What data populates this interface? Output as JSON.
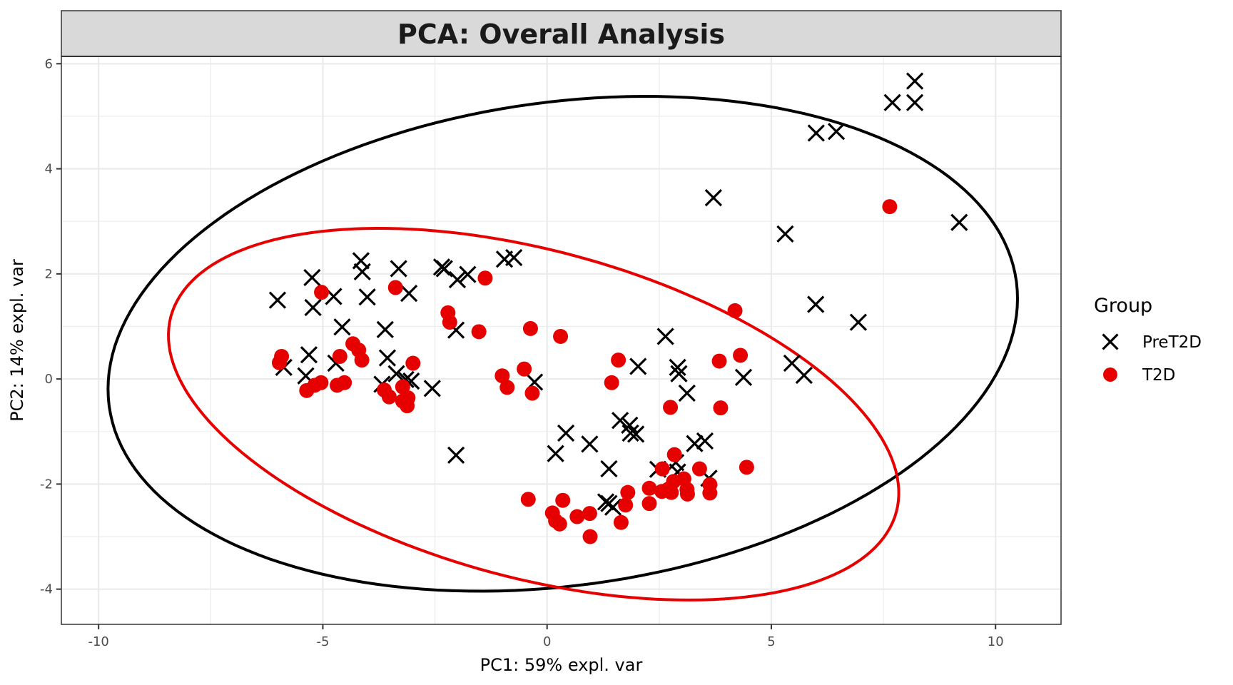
{
  "chart_data": {
    "type": "scatter",
    "title": "PCA: Overall Analysis",
    "xlabel": "PC1: 59% expl. var",
    "ylabel": "PC2: 14% expl. var",
    "xlim": [
      -10.83,
      11.46
    ],
    "ylim": [
      -4.67,
      6.14
    ],
    "xticks": [
      -10,
      -5,
      0,
      5,
      10
    ],
    "xtick_labels": [
      "-10",
      "-5",
      "0",
      "5",
      "10"
    ],
    "yticks": [
      -4,
      -2,
      0,
      2,
      4,
      6
    ],
    "ytick_labels": [
      "-4",
      "-2",
      "0",
      "2",
      "4",
      "6"
    ],
    "grid": true,
    "legend": {
      "title": "Group",
      "position": "right"
    },
    "colors": {
      "PreT2D": "#000000",
      "T2D": "#e60000",
      "strip": "#d9d9d9",
      "grid": "#ebebeb",
      "panel_border": "#333333"
    },
    "series": [
      {
        "name": "PreT2D",
        "marker": "cross",
        "color": "#000000",
        "points": [
          [
            8.2,
            5.67
          ],
          [
            7.7,
            5.26
          ],
          [
            8.2,
            5.26
          ],
          [
            6.0,
            4.68
          ],
          [
            6.45,
            4.71
          ],
          [
            3.71,
            3.45
          ],
          [
            5.31,
            2.76
          ],
          [
            9.19,
            2.98
          ],
          [
            5.99,
            1.42
          ],
          [
            6.94,
            1.08
          ],
          [
            5.46,
            0.3
          ],
          [
            5.73,
            0.07
          ],
          [
            4.38,
            0.03
          ],
          [
            2.64,
            0.81
          ],
          [
            2.03,
            0.24
          ],
          [
            2.91,
            0.22
          ],
          [
            2.94,
            0.1
          ],
          [
            3.12,
            -0.27
          ],
          [
            -0.28,
            -0.06
          ],
          [
            -0.95,
            2.28
          ],
          [
            -0.74,
            2.31
          ],
          [
            -2.35,
            2.13
          ],
          [
            -2.29,
            2.1
          ],
          [
            -2.0,
            1.89
          ],
          [
            -1.77,
            1.99
          ],
          [
            -2.03,
            0.93
          ],
          [
            -2.56,
            -0.18
          ],
          [
            -2.03,
            -1.45
          ],
          [
            -3.31,
            2.1
          ],
          [
            -3.08,
            1.63
          ],
          [
            -4.15,
            2.25
          ],
          [
            -4.12,
            2.04
          ],
          [
            -4.01,
            1.56
          ],
          [
            -5.24,
            1.93
          ],
          [
            -5.22,
            1.36
          ],
          [
            -4.76,
            1.57
          ],
          [
            -6.01,
            1.5
          ],
          [
            -4.57,
            0.99
          ],
          [
            -3.61,
            0.94
          ],
          [
            -5.31,
            0.46
          ],
          [
            -4.71,
            0.3
          ],
          [
            -5.87,
            0.22
          ],
          [
            -5.38,
            0.06
          ],
          [
            -3.56,
            0.4
          ],
          [
            -3.36,
            0.1
          ],
          [
            -3.15,
            -0.01
          ],
          [
            -3.03,
            -0.04
          ],
          [
            -3.68,
            -0.1
          ],
          [
            0.42,
            -1.03
          ],
          [
            0.19,
            -1.42
          ],
          [
            0.95,
            -1.24
          ],
          [
            1.38,
            -1.71
          ],
          [
            1.63,
            -0.79
          ],
          [
            1.84,
            -0.88
          ],
          [
            1.86,
            -1.03
          ],
          [
            1.98,
            -1.05
          ],
          [
            3.29,
            -1.23
          ],
          [
            3.52,
            -1.18
          ],
          [
            2.47,
            -1.72
          ],
          [
            2.87,
            -1.59
          ],
          [
            2.91,
            -1.77
          ],
          [
            3.61,
            -1.89
          ],
          [
            1.31,
            -2.34
          ],
          [
            1.38,
            -2.37
          ],
          [
            1.47,
            -2.44
          ]
        ],
        "ellipse": {
          "center": [
            0.35,
            0.67
          ],
          "u": [
            10.14,
            0.86
          ],
          "v": [
            0.0,
            4.63
          ]
        }
      },
      {
        "name": "T2D",
        "marker": "circle",
        "color": "#e60000",
        "points": [
          [
            7.64,
            3.28
          ],
          [
            4.19,
            1.3
          ],
          [
            -1.38,
            1.92
          ],
          [
            -5.03,
            1.65
          ],
          [
            -3.38,
            1.74
          ],
          [
            -2.21,
            1.26
          ],
          [
            -2.17,
            1.08
          ],
          [
            -1.52,
            0.9
          ],
          [
            -0.37,
            0.96
          ],
          [
            0.3,
            0.81
          ],
          [
            1.59,
            0.36
          ],
          [
            1.44,
            -0.07
          ],
          [
            -0.51,
            0.19
          ],
          [
            -1.0,
            0.06
          ],
          [
            -0.89,
            -0.16
          ],
          [
            -0.33,
            -0.27
          ],
          [
            2.75,
            -0.54
          ],
          [
            3.84,
            0.34
          ],
          [
            4.31,
            0.45
          ],
          [
            3.87,
            -0.55
          ],
          [
            4.45,
            -1.68
          ],
          [
            2.84,
            -1.44
          ],
          [
            3.4,
            -1.71
          ],
          [
            2.57,
            -1.71
          ],
          [
            -5.97,
            0.31
          ],
          [
            -5.92,
            0.43
          ],
          [
            -4.62,
            0.43
          ],
          [
            -4.33,
            0.67
          ],
          [
            -4.2,
            0.55
          ],
          [
            -4.13,
            0.36
          ],
          [
            -5.36,
            -0.22
          ],
          [
            -5.18,
            -0.12
          ],
          [
            -5.04,
            -0.07
          ],
          [
            -4.68,
            -0.12
          ],
          [
            -4.52,
            -0.07
          ],
          [
            -3.63,
            -0.21
          ],
          [
            -3.52,
            -0.34
          ],
          [
            -3.22,
            -0.15
          ],
          [
            -2.99,
            0.3
          ],
          [
            -3.22,
            -0.42
          ],
          [
            -3.1,
            -0.36
          ],
          [
            -3.12,
            -0.51
          ],
          [
            -0.42,
            -2.29
          ],
          [
            0.35,
            -2.31
          ],
          [
            0.12,
            -2.55
          ],
          [
            0.19,
            -2.7
          ],
          [
            0.28,
            -2.76
          ],
          [
            0.67,
            -2.62
          ],
          [
            0.95,
            -2.56
          ],
          [
            0.96,
            -3.0
          ],
          [
            1.65,
            -2.73
          ],
          [
            1.75,
            -2.4
          ],
          [
            1.8,
            -2.16
          ],
          [
            2.28,
            -2.08
          ],
          [
            2.28,
            -2.37
          ],
          [
            2.56,
            -2.14
          ],
          [
            2.7,
            -2.1
          ],
          [
            2.77,
            -2.16
          ],
          [
            2.82,
            -1.95
          ],
          [
            3.05,
            -1.9
          ],
          [
            3.12,
            -2.1
          ],
          [
            3.13,
            -2.19
          ],
          [
            3.63,
            -2.01
          ],
          [
            3.63,
            -2.17
          ]
        ],
        "ellipse": {
          "center": [
            -0.3,
            -0.67
          ],
          "u": [
            8.14,
            -1.42
          ],
          "v": [
            -0.2,
            3.24
          ]
        }
      }
    ]
  }
}
